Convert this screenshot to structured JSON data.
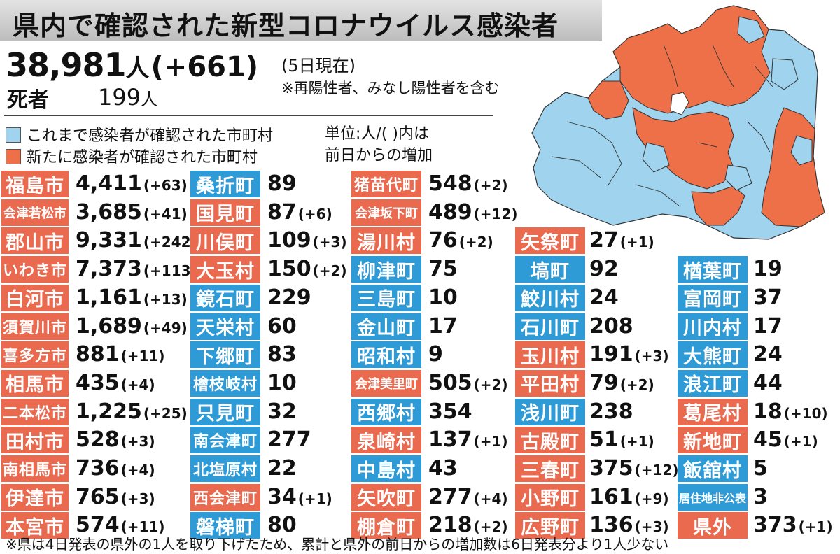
{
  "title": "県内で確認された新型コロナウイルス感染者",
  "summary": {
    "total": "38,981",
    "total_unit": "人",
    "total_change": "(+661)",
    "as_of": "(5日現在)",
    "note": "※再陽性者、みなし陽性者を含む",
    "deaths_label": "死者",
    "deaths_count": "199",
    "deaths_unit": "人"
  },
  "legend": {
    "existing_label": "これまで感染者が確認された市町村",
    "new_label": "新たに感染者が確認された市町村",
    "unit_line1": "単位:人/(  )内は",
    "unit_line2": "前日からの増加"
  },
  "colors": {
    "existing": "#2f9bd6",
    "new": "#ea6a4f",
    "map_existing": "#9fd3ee",
    "map_new": "#ee7049",
    "map_none": "#ffffff"
  },
  "columns": [
    [
      {
        "name": "福島市",
        "count": "4,411",
        "inc": "(+63)",
        "status": "new"
      },
      {
        "name": "会津若松市",
        "count": "3,685",
        "inc": "(+41)",
        "status": "new"
      },
      {
        "name": "郡山市",
        "count": "9,331",
        "inc": "(+242)",
        "status": "new"
      },
      {
        "name": "いわき市",
        "count": "7,373",
        "inc": "(+113)",
        "status": "new"
      },
      {
        "name": "白河市",
        "count": "1,161",
        "inc": "(+13)",
        "status": "new"
      },
      {
        "name": "須賀川市",
        "count": "1,689",
        "inc": "(+49)",
        "status": "new"
      },
      {
        "name": "喜多方市",
        "count": "881",
        "inc": "(+11)",
        "status": "new"
      },
      {
        "name": "相馬市",
        "count": "435",
        "inc": "(+4)",
        "status": "new"
      },
      {
        "name": "二本松市",
        "count": "1,225",
        "inc": "(+25)",
        "status": "new"
      },
      {
        "name": "田村市",
        "count": "528",
        "inc": "(+3)",
        "status": "new"
      },
      {
        "name": "南相馬市",
        "count": "736",
        "inc": "(+4)",
        "status": "new"
      },
      {
        "name": "伊達市",
        "count": "765",
        "inc": "(+3)",
        "status": "new"
      },
      {
        "name": "本宮市",
        "count": "574",
        "inc": "(+11)",
        "status": "new"
      }
    ],
    [
      {
        "name": "桑折町",
        "count": "89",
        "inc": "",
        "status": "existing"
      },
      {
        "name": "国見町",
        "count": "87",
        "inc": "(+6)",
        "status": "new"
      },
      {
        "name": "川俣町",
        "count": "109",
        "inc": "(+3)",
        "status": "new"
      },
      {
        "name": "大玉村",
        "count": "150",
        "inc": "(+2)",
        "status": "new"
      },
      {
        "name": "鏡石町",
        "count": "229",
        "inc": "",
        "status": "existing"
      },
      {
        "name": "天栄村",
        "count": "60",
        "inc": "",
        "status": "existing"
      },
      {
        "name": "下郷町",
        "count": "83",
        "inc": "",
        "status": "existing"
      },
      {
        "name": "檜枝岐村",
        "count": "10",
        "inc": "",
        "status": "existing"
      },
      {
        "name": "只見町",
        "count": "32",
        "inc": "",
        "status": "existing"
      },
      {
        "name": "南会津町",
        "count": "277",
        "inc": "",
        "status": "existing"
      },
      {
        "name": "北塩原村",
        "count": "22",
        "inc": "",
        "status": "existing"
      },
      {
        "name": "西会津町",
        "count": "34",
        "inc": "(+1)",
        "status": "new"
      },
      {
        "name": "磐梯町",
        "count": "80",
        "inc": "",
        "status": "existing"
      }
    ],
    [
      {
        "name": "猪苗代町",
        "count": "548",
        "inc": "(+2)",
        "status": "new"
      },
      {
        "name": "会津坂下町",
        "count": "489",
        "inc": "(+12)",
        "status": "new"
      },
      {
        "name": "湯川村",
        "count": "76",
        "inc": "(+2)",
        "status": "new"
      },
      {
        "name": "柳津町",
        "count": "75",
        "inc": "",
        "status": "existing"
      },
      {
        "name": "三島町",
        "count": "10",
        "inc": "",
        "status": "existing"
      },
      {
        "name": "金山町",
        "count": "17",
        "inc": "",
        "status": "existing"
      },
      {
        "name": "昭和村",
        "count": "9",
        "inc": "",
        "status": "existing"
      },
      {
        "name": "会津美里町",
        "count": "505",
        "inc": "(+2)",
        "status": "new"
      },
      {
        "name": "西郷村",
        "count": "354",
        "inc": "",
        "status": "existing"
      },
      {
        "name": "泉崎村",
        "count": "137",
        "inc": "(+1)",
        "status": "new"
      },
      {
        "name": "中島村",
        "count": "43",
        "inc": "",
        "status": "existing"
      },
      {
        "name": "矢吹町",
        "count": "277",
        "inc": "(+4)",
        "status": "new"
      },
      {
        "name": "棚倉町",
        "count": "218",
        "inc": "(+2)",
        "status": "new"
      }
    ],
    [
      {
        "name": "矢祭町",
        "count": "27",
        "inc": "(+1)",
        "status": "new"
      },
      {
        "name": "塙町",
        "count": "92",
        "inc": "",
        "status": "existing"
      },
      {
        "name": "鮫川村",
        "count": "24",
        "inc": "",
        "status": "existing"
      },
      {
        "name": "石川町",
        "count": "208",
        "inc": "",
        "status": "existing"
      },
      {
        "name": "玉川村",
        "count": "191",
        "inc": "(+3)",
        "status": "new"
      },
      {
        "name": "平田村",
        "count": "79",
        "inc": "(+2)",
        "status": "new"
      },
      {
        "name": "浅川町",
        "count": "238",
        "inc": "",
        "status": "existing"
      },
      {
        "name": "古殿町",
        "count": "51",
        "inc": "(+1)",
        "status": "new"
      },
      {
        "name": "三春町",
        "count": "375",
        "inc": "(+12)",
        "status": "new"
      },
      {
        "name": "小野町",
        "count": "161",
        "inc": "(+9)",
        "status": "new"
      },
      {
        "name": "広野町",
        "count": "136",
        "inc": "(+3)",
        "status": "new"
      }
    ],
    [
      {
        "name": "楢葉町",
        "count": "19",
        "inc": "",
        "status": "existing"
      },
      {
        "name": "富岡町",
        "count": "37",
        "inc": "",
        "status": "existing"
      },
      {
        "name": "川内村",
        "count": "17",
        "inc": "",
        "status": "existing"
      },
      {
        "name": "大熊町",
        "count": "24",
        "inc": "",
        "status": "existing"
      },
      {
        "name": "浪江町",
        "count": "44",
        "inc": "",
        "status": "existing"
      },
      {
        "name": "葛尾村",
        "count": "18",
        "inc": "(+10)",
        "status": "new"
      },
      {
        "name": "新地町",
        "count": "45",
        "inc": "(+1)",
        "status": "new"
      },
      {
        "name": "飯舘村",
        "count": "5",
        "inc": "",
        "status": "existing"
      },
      {
        "name": "居住地非公表",
        "count": "3",
        "inc": "",
        "status": "existing"
      },
      {
        "name": "県外",
        "count": "373",
        "inc": "(+1)",
        "status": "new"
      }
    ]
  ],
  "footnote": "※県は4日発表の県外の1人を取り下げたため、累計と県外の前日からの増加数は6日発表分より1人少ない"
}
